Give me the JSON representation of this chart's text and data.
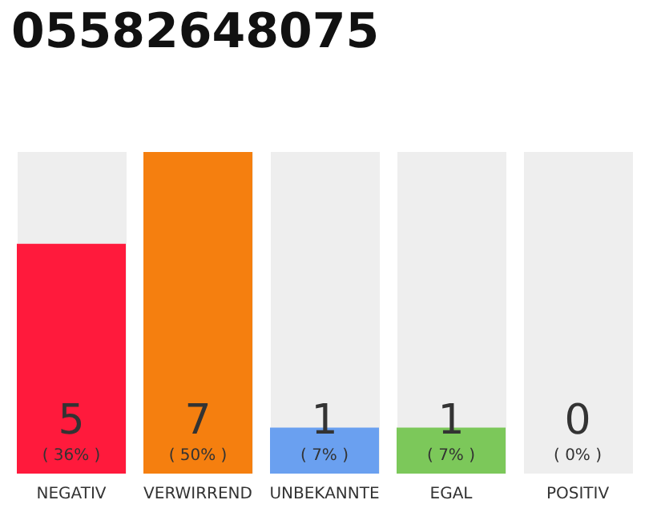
{
  "chart_data": {
    "type": "bar",
    "title": "05582648075",
    "categories": [
      "NEGATIV",
      "VERWIRREND",
      "UNBEKANNTE",
      "EGAL",
      "POSITIV"
    ],
    "values": [
      5,
      7,
      1,
      1,
      0
    ],
    "colors": [
      "#ff1a3c",
      "#f57f0f",
      "#6aa0f0",
      "#7cc85a",
      null
    ],
    "value_labels": [
      "5\n( 36% )",
      "7\n( 50% )",
      "1\n( 7% )",
      "1\n( 7% )",
      "0\n( 0% )"
    ],
    "data_labels": true
  }
}
